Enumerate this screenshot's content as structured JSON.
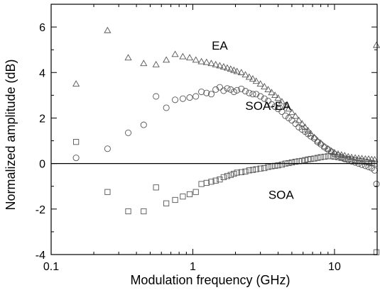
{
  "chart_data": {
    "type": "scatter",
    "title": "",
    "xlabel": "Modulation frequency (GHz)",
    "ylabel": "Normalized amplitude (dB)",
    "xscale": "log",
    "xlim": [
      0.1,
      20
    ],
    "ylim": [
      -4,
      7
    ],
    "grid": false,
    "reference_line_y": 0,
    "xticks": [
      {
        "value": 0.1,
        "label": "0.1"
      },
      {
        "value": 1,
        "label": "1"
      },
      {
        "value": 10,
        "label": "10"
      }
    ],
    "yticks": [
      {
        "value": -4,
        "label": "-4"
      },
      {
        "value": -2,
        "label": "-2"
      },
      {
        "value": 0,
        "label": "0"
      },
      {
        "value": 2,
        "label": "2"
      },
      {
        "value": 4,
        "label": "4"
      },
      {
        "value": 6,
        "label": "6"
      }
    ],
    "series": [
      {
        "name": "EA",
        "marker": "triangle",
        "label_at": [
          1.55,
          5.0
        ],
        "points": [
          [
            0.15,
            3.5
          ],
          [
            0.25,
            5.85
          ],
          [
            0.35,
            4.65
          ],
          [
            0.45,
            4.4
          ],
          [
            0.55,
            4.35
          ],
          [
            0.65,
            4.55
          ],
          [
            0.75,
            4.8
          ],
          [
            0.85,
            4.7
          ],
          [
            0.95,
            4.65
          ],
          [
            1.05,
            4.55
          ],
          [
            1.15,
            4.48
          ],
          [
            1.25,
            4.45
          ],
          [
            1.35,
            4.4
          ],
          [
            1.45,
            4.35
          ],
          [
            1.55,
            4.3
          ],
          [
            1.65,
            4.25
          ],
          [
            1.75,
            4.2
          ],
          [
            1.85,
            4.15
          ],
          [
            1.95,
            4.1
          ],
          [
            2.05,
            4.05
          ],
          [
            2.2,
            4.0
          ],
          [
            2.35,
            3.9
          ],
          [
            2.5,
            3.8
          ],
          [
            2.65,
            3.72
          ],
          [
            2.8,
            3.62
          ],
          [
            3.0,
            3.5
          ],
          [
            3.2,
            3.38
          ],
          [
            3.4,
            3.25
          ],
          [
            3.6,
            3.12
          ],
          [
            3.8,
            3.0
          ],
          [
            4.0,
            2.88
          ],
          [
            4.25,
            2.72
          ],
          [
            4.5,
            2.55
          ],
          [
            4.75,
            2.4
          ],
          [
            5.0,
            2.25
          ],
          [
            5.3,
            2.08
          ],
          [
            5.6,
            1.9
          ],
          [
            5.9,
            1.75
          ],
          [
            6.2,
            1.6
          ],
          [
            6.5,
            1.45
          ],
          [
            6.8,
            1.32
          ],
          [
            7.2,
            1.15
          ],
          [
            7.6,
            1.0
          ],
          [
            8.0,
            0.9
          ],
          [
            8.5,
            0.75
          ],
          [
            9.0,
            0.65
          ],
          [
            9.5,
            0.55
          ],
          [
            10.0,
            0.48
          ],
          [
            10.6,
            0.42
          ],
          [
            11.2,
            0.38
          ],
          [
            11.8,
            0.35
          ],
          [
            12.5,
            0.3
          ],
          [
            13.2,
            0.27
          ],
          [
            14.0,
            0.25
          ],
          [
            14.8,
            0.23
          ],
          [
            15.6,
            0.22
          ],
          [
            16.5,
            0.2
          ],
          [
            17.4,
            0.2
          ],
          [
            18.3,
            0.18
          ],
          [
            19.2,
            0.17
          ],
          [
            20.0,
            5.2
          ]
        ]
      },
      {
        "name": "SOA-EA",
        "marker": "circle",
        "label_at": [
          3.4,
          2.35
        ],
        "points": [
          [
            0.15,
            0.25
          ],
          [
            0.25,
            0.65
          ],
          [
            0.35,
            1.35
          ],
          [
            0.45,
            1.7
          ],
          [
            0.55,
            2.95
          ],
          [
            0.65,
            2.45
          ],
          [
            0.75,
            2.8
          ],
          [
            0.85,
            2.85
          ],
          [
            0.95,
            2.9
          ],
          [
            1.05,
            2.95
          ],
          [
            1.15,
            3.15
          ],
          [
            1.25,
            3.1
          ],
          [
            1.35,
            3.05
          ],
          [
            1.45,
            3.25
          ],
          [
            1.55,
            3.35
          ],
          [
            1.65,
            3.2
          ],
          [
            1.75,
            3.3
          ],
          [
            1.85,
            3.25
          ],
          [
            1.95,
            3.15
          ],
          [
            2.05,
            3.22
          ],
          [
            2.2,
            3.28
          ],
          [
            2.35,
            3.18
          ],
          [
            2.5,
            3.1
          ],
          [
            2.65,
            3.05
          ],
          [
            2.8,
            3.05
          ],
          [
            3.0,
            2.95
          ],
          [
            3.2,
            2.85
          ],
          [
            3.4,
            2.75
          ],
          [
            3.6,
            2.6
          ],
          [
            3.8,
            2.5
          ],
          [
            4.0,
            2.4
          ],
          [
            4.25,
            2.28
          ],
          [
            4.5,
            2.1
          ],
          [
            4.75,
            2.0
          ],
          [
            5.0,
            1.9
          ],
          [
            5.3,
            1.75
          ],
          [
            5.6,
            1.6
          ],
          [
            5.9,
            1.5
          ],
          [
            6.2,
            1.4
          ],
          [
            6.5,
            1.3
          ],
          [
            6.8,
            1.2
          ],
          [
            7.2,
            1.1
          ],
          [
            7.6,
            0.95
          ],
          [
            8.0,
            0.85
          ],
          [
            8.5,
            0.72
          ],
          [
            9.0,
            0.62
          ],
          [
            9.5,
            0.52
          ],
          [
            10.0,
            0.42
          ],
          [
            10.6,
            0.35
          ],
          [
            11.2,
            0.28
          ],
          [
            11.8,
            0.2
          ],
          [
            12.5,
            0.15
          ],
          [
            13.2,
            0.1
          ],
          [
            14.0,
            0.05
          ],
          [
            14.8,
            0.0
          ],
          [
            15.6,
            -0.05
          ],
          [
            16.5,
            -0.1
          ],
          [
            17.4,
            -0.15
          ],
          [
            18.3,
            -0.2
          ],
          [
            19.2,
            -0.3
          ],
          [
            20.0,
            -0.9
          ]
        ]
      },
      {
        "name": "SOA",
        "marker": "square",
        "label_at": [
          4.2,
          -1.55
        ],
        "points": [
          [
            0.15,
            0.95
          ],
          [
            0.25,
            -1.25
          ],
          [
            0.35,
            -2.1
          ],
          [
            0.45,
            -2.1
          ],
          [
            0.55,
            -1.05
          ],
          [
            0.65,
            -1.75
          ],
          [
            0.75,
            -1.6
          ],
          [
            0.85,
            -1.45
          ],
          [
            0.95,
            -1.35
          ],
          [
            1.05,
            -1.25
          ],
          [
            1.15,
            -0.9
          ],
          [
            1.25,
            -0.85
          ],
          [
            1.35,
            -0.8
          ],
          [
            1.45,
            -0.75
          ],
          [
            1.55,
            -0.7
          ],
          [
            1.65,
            -0.6
          ],
          [
            1.75,
            -0.55
          ],
          [
            1.85,
            -0.5
          ],
          [
            1.95,
            -0.45
          ],
          [
            2.05,
            -0.4
          ],
          [
            2.2,
            -0.38
          ],
          [
            2.35,
            -0.35
          ],
          [
            2.5,
            -0.3
          ],
          [
            2.65,
            -0.28
          ],
          [
            2.8,
            -0.25
          ],
          [
            3.0,
            -0.22
          ],
          [
            3.2,
            -0.2
          ],
          [
            3.4,
            -0.15
          ],
          [
            3.6,
            -0.12
          ],
          [
            3.8,
            -0.1
          ],
          [
            4.0,
            -0.08
          ],
          [
            4.25,
            -0.05
          ],
          [
            4.5,
            0.0
          ],
          [
            4.75,
            0.02
          ],
          [
            5.0,
            0.05
          ],
          [
            5.3,
            0.08
          ],
          [
            5.6,
            0.1
          ],
          [
            5.9,
            0.12
          ],
          [
            6.2,
            0.15
          ],
          [
            6.5,
            0.18
          ],
          [
            6.8,
            0.2
          ],
          [
            7.2,
            0.22
          ],
          [
            7.6,
            0.25
          ],
          [
            8.0,
            0.28
          ],
          [
            8.5,
            0.3
          ],
          [
            9.0,
            0.32
          ],
          [
            9.5,
            0.32
          ],
          [
            10.0,
            0.3
          ],
          [
            10.6,
            0.28
          ],
          [
            11.2,
            0.25
          ],
          [
            11.8,
            0.22
          ],
          [
            12.5,
            0.2
          ],
          [
            13.2,
            0.18
          ],
          [
            14.0,
            0.15
          ],
          [
            14.8,
            0.12
          ],
          [
            15.6,
            0.1
          ],
          [
            16.5,
            0.08
          ],
          [
            17.4,
            0.05
          ],
          [
            18.3,
            0.02
          ],
          [
            19.2,
            0.0
          ],
          [
            20.0,
            -3.9
          ]
        ]
      }
    ]
  }
}
